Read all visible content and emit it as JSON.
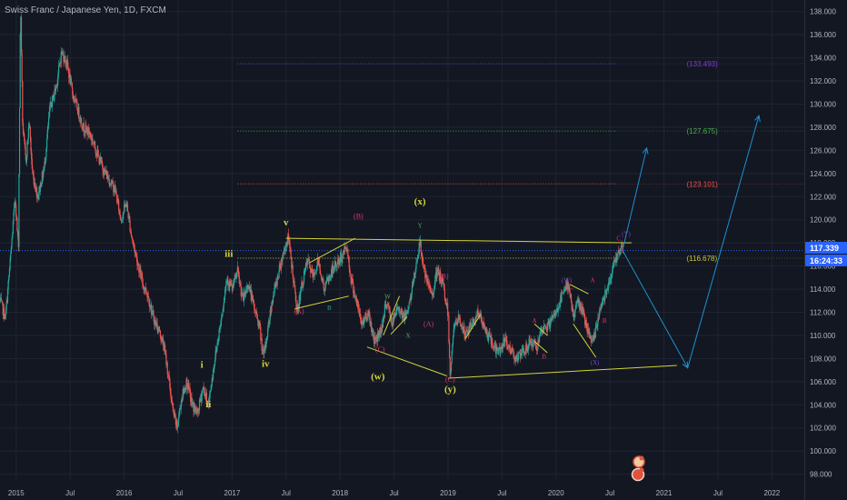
{
  "header": {
    "title": "Swiss Franc / Japanese Yen, 1D, FXCM"
  },
  "price_badge": {
    "price": "117.339",
    "countdown": "16:24:33",
    "color": "#2962ff"
  },
  "colors": {
    "background": "#131722",
    "grid": "#1f2433",
    "axis_text": "#b2b5be",
    "up_candle": "#26a69a",
    "down_candle": "#ef5350",
    "trend_lines": "#d4d43a",
    "projection": "#1e90d0",
    "price_line": "#2962ff"
  },
  "chart_data": {
    "type": "candlestick",
    "title": "Swiss Franc / Japanese Yen, 1D, FXCM",
    "y_axis": {
      "ticks": [
        "138.000",
        "136.000",
        "134.000",
        "132.000",
        "130.000",
        "128.000",
        "126.000",
        "124.000",
        "122.000",
        "120.000",
        "118.000",
        "116.000",
        "114.000",
        "112.000",
        "110.000",
        "108.000",
        "106.000",
        "104.000",
        "102.000",
        "100.000",
        "98.000"
      ],
      "range": [
        97.5,
        139
      ]
    },
    "x_axis": {
      "ticks": [
        {
          "label": "2015",
          "year": 2015.0
        },
        {
          "label": "Jul",
          "year": 2015.5
        },
        {
          "label": "2016",
          "year": 2016.0
        },
        {
          "label": "Jul",
          "year": 2016.5
        },
        {
          "label": "2017",
          "year": 2017.0
        },
        {
          "label": "Jul",
          "year": 2017.5
        },
        {
          "label": "2018",
          "year": 2018.0
        },
        {
          "label": "Jul",
          "year": 2018.5
        },
        {
          "label": "2019",
          "year": 2019.0
        },
        {
          "label": "Jul",
          "year": 2019.5
        },
        {
          "label": "2020",
          "year": 2020.0
        },
        {
          "label": "Jul",
          "year": 2020.5
        },
        {
          "label": "2021",
          "year": 2021.0
        },
        {
          "label": "Jul",
          "year": 2021.5
        },
        {
          "label": "2022",
          "year": 2022.0
        }
      ],
      "range": [
        2014.85,
        2022.3
      ]
    },
    "price_path": [
      [
        2014.85,
        113.0
      ],
      [
        2014.9,
        111.5
      ],
      [
        2014.95,
        117.0
      ],
      [
        2014.99,
        122.0
      ],
      [
        2015.02,
        117.5
      ],
      [
        2015.04,
        139.0
      ],
      [
        2015.06,
        128.0
      ],
      [
        2015.09,
        125.0
      ],
      [
        2015.12,
        128.5
      ],
      [
        2015.15,
        124.0
      ],
      [
        2015.2,
        122.0
      ],
      [
        2015.26,
        124.5
      ],
      [
        2015.31,
        129.5
      ],
      [
        2015.37,
        131.5
      ],
      [
        2015.42,
        134.5
      ],
      [
        2015.47,
        133.5
      ],
      [
        2015.52,
        131.0
      ],
      [
        2015.57,
        129.5
      ],
      [
        2015.62,
        128.0
      ],
      [
        2015.68,
        127.5
      ],
      [
        2015.74,
        126.0
      ],
      [
        2015.8,
        124.5
      ],
      [
        2015.86,
        123.5
      ],
      [
        2015.92,
        122.5
      ],
      [
        2015.97,
        120.0
      ],
      [
        2016.02,
        121.5
      ],
      [
        2016.07,
        118.5
      ],
      [
        2016.12,
        116.5
      ],
      [
        2016.17,
        114.5
      ],
      [
        2016.22,
        113.5
      ],
      [
        2016.27,
        111.5
      ],
      [
        2016.32,
        110.5
      ],
      [
        2016.37,
        109.0
      ],
      [
        2016.41,
        106.5
      ],
      [
        2016.45,
        103.5
      ],
      [
        2016.49,
        102.0
      ],
      [
        2016.53,
        104.5
      ],
      [
        2016.58,
        106.0
      ],
      [
        2016.63,
        104.0
      ],
      [
        2016.68,
        103.2
      ],
      [
        2016.73,
        105.5
      ],
      [
        2016.78,
        104.0
      ],
      [
        2016.84,
        108.0
      ],
      [
        2016.9,
        111.5
      ],
      [
        2016.95,
        115.0
      ],
      [
        2017.0,
        114.0
      ],
      [
        2017.05,
        115.5
      ],
      [
        2017.1,
        113.0
      ],
      [
        2017.15,
        114.5
      ],
      [
        2017.2,
        112.5
      ],
      [
        2017.25,
        111.0
      ],
      [
        2017.29,
        108.0
      ],
      [
        2017.33,
        110.5
      ],
      [
        2017.37,
        113.0
      ],
      [
        2017.42,
        115.0
      ],
      [
        2017.47,
        117.0
      ],
      [
        2017.52,
        118.5
      ],
      [
        2017.56,
        115.5
      ],
      [
        2017.6,
        112.0
      ],
      [
        2017.65,
        114.5
      ],
      [
        2017.7,
        116.5
      ],
      [
        2017.75,
        115.0
      ],
      [
        2017.8,
        116.5
      ],
      [
        2017.85,
        114.0
      ],
      [
        2017.9,
        115.0
      ],
      [
        2017.95,
        116.0
      ],
      [
        2018.0,
        116.5
      ],
      [
        2018.06,
        117.8
      ],
      [
        2018.1,
        115.0
      ],
      [
        2018.15,
        113.0
      ],
      [
        2018.2,
        111.0
      ],
      [
        2018.26,
        112.0
      ],
      [
        2018.32,
        109.5
      ],
      [
        2018.38,
        110.5
      ],
      [
        2018.43,
        113.0
      ],
      [
        2018.48,
        111.0
      ],
      [
        2018.54,
        112.5
      ],
      [
        2018.6,
        111.5
      ],
      [
        2018.66,
        113.5
      ],
      [
        2018.7,
        116.0
      ],
      [
        2018.74,
        118.0
      ],
      [
        2018.79,
        115.0
      ],
      [
        2018.85,
        113.5
      ],
      [
        2018.9,
        115.5
      ],
      [
        2018.95,
        114.5
      ],
      [
        2019.0,
        112.0
      ],
      [
        2019.02,
        106.5
      ],
      [
        2019.05,
        110.5
      ],
      [
        2019.1,
        111.5
      ],
      [
        2019.16,
        110.0
      ],
      [
        2019.22,
        111.0
      ],
      [
        2019.28,
        112.0
      ],
      [
        2019.34,
        110.5
      ],
      [
        2019.4,
        109.5
      ],
      [
        2019.46,
        108.5
      ],
      [
        2019.52,
        109.5
      ],
      [
        2019.58,
        108.8
      ],
      [
        2019.64,
        108.0
      ],
      [
        2019.7,
        108.5
      ],
      [
        2019.76,
        109.5
      ],
      [
        2019.82,
        109.0
      ],
      [
        2019.88,
        110.5
      ],
      [
        2019.94,
        111.0
      ],
      [
        2020.0,
        112.0
      ],
      [
        2020.06,
        113.5
      ],
      [
        2020.12,
        114.5
      ],
      [
        2020.16,
        111.5
      ],
      [
        2020.2,
        113.0
      ],
      [
        2020.25,
        112.0
      ],
      [
        2020.3,
        110.0
      ],
      [
        2020.35,
        109.5
      ],
      [
        2020.4,
        112.0
      ],
      [
        2020.45,
        113.5
      ],
      [
        2020.5,
        115.0
      ],
      [
        2020.55,
        116.5
      ],
      [
        2020.59,
        117.5
      ],
      [
        2020.62,
        117.3
      ]
    ],
    "horizontal_levels": [
      {
        "value": 133.493,
        "label": "(133.493)",
        "color": "#7e3fd1"
      },
      {
        "value": 127.675,
        "label": "(127.675)",
        "color": "#4caf50"
      },
      {
        "value": 123.101,
        "label": "(123.101)",
        "color": "#ef5350"
      },
      {
        "value": 116.678,
        "label": "(116.678)",
        "color": "#c8c838"
      }
    ],
    "trend_lines": [
      {
        "x1": 2017.5,
        "y1": 118.4,
        "x2": 2020.7,
        "y2": 118.0
      },
      {
        "x1": 2019.0,
        "y1": 106.3,
        "x2": 2021.12,
        "y2": 107.4
      },
      {
        "x1": 2018.25,
        "y1": 109.0,
        "x2": 2018.99,
        "y2": 106.5
      },
      {
        "x1": 2017.72,
        "y1": 116.3,
        "x2": 2018.14,
        "y2": 118.4
      },
      {
        "x1": 2017.58,
        "y1": 112.3,
        "x2": 2018.08,
        "y2": 113.4
      },
      {
        "x1": 2018.4,
        "y1": 110.0,
        "x2": 2018.55,
        "y2": 113.4
      },
      {
        "x1": 2018.47,
        "y1": 110.1,
        "x2": 2018.62,
        "y2": 111.6
      },
      {
        "x1": 2019.16,
        "y1": 109.7,
        "x2": 2019.3,
        "y2": 111.8
      },
      {
        "x1": 2019.8,
        "y1": 109.5,
        "x2": 2019.92,
        "y2": 108.5
      },
      {
        "x1": 2019.8,
        "y1": 111.0,
        "x2": 2019.92,
        "y2": 110.0
      },
      {
        "x1": 2020.13,
        "y1": 114.4,
        "x2": 2020.3,
        "y2": 113.6
      },
      {
        "x1": 2020.16,
        "y1": 111.0,
        "x2": 2020.37,
        "y2": 108.1
      }
    ],
    "projections": [
      {
        "points": [
          [
            2020.62,
            117.5
          ],
          [
            2020.84,
            126.2
          ]
        ]
      },
      {
        "points": [
          [
            2020.62,
            117.3
          ],
          [
            2021.22,
            107.2
          ],
          [
            2021.88,
            129.0
          ]
        ]
      }
    ],
    "wave_labels": [
      {
        "text": "i",
        "x": 2016.72,
        "y": 107.2,
        "color": "#d4d43a",
        "size": 11,
        "bold": true
      },
      {
        "text": "ii",
        "x": 2016.78,
        "y": 103.8,
        "color": "#d4d43a",
        "size": 11,
        "bold": true
      },
      {
        "text": "iii",
        "x": 2016.97,
        "y": 116.8,
        "color": "#d4d43a",
        "size": 11,
        "bold": true
      },
      {
        "text": "iv",
        "x": 2017.31,
        "y": 107.3,
        "color": "#d4d43a",
        "size": 11,
        "bold": true
      },
      {
        "text": "v",
        "x": 2017.5,
        "y": 119.5,
        "color": "#d4d43a",
        "size": 11,
        "bold": true
      },
      {
        "text": "(x)",
        "x": 2018.74,
        "y": 121.3,
        "color": "#d4d43a",
        "size": 11,
        "bold": true
      },
      {
        "text": "(w)",
        "x": 2018.35,
        "y": 106.2,
        "color": "#d4d43a",
        "size": 11,
        "bold": true
      },
      {
        "text": "(y)",
        "x": 2019.02,
        "y": 105.1,
        "color": "#d4d43a",
        "size": 11,
        "bold": true
      },
      {
        "text": "(B)",
        "x": 2018.17,
        "y": 120.1,
        "color": "#e0336e",
        "size": 8,
        "bold": false
      },
      {
        "text": "(A)",
        "x": 2017.62,
        "y": 111.9,
        "color": "#e0336e",
        "size": 8,
        "bold": false
      },
      {
        "text": "(C)",
        "x": 2018.37,
        "y": 108.6,
        "color": "#e0336e",
        "size": 8,
        "bold": false
      },
      {
        "text": "(B)",
        "x": 2018.96,
        "y": 114.9,
        "color": "#e0336e",
        "size": 8,
        "bold": false
      },
      {
        "text": "(A)",
        "x": 2018.82,
        "y": 110.8,
        "color": "#e0336e",
        "size": 8,
        "bold": false
      },
      {
        "text": "(C)",
        "x": 2019.02,
        "y": 106.0,
        "color": "#e0336e",
        "size": 8,
        "bold": false
      },
      {
        "text": "B",
        "x": 2017.9,
        "y": 112.2,
        "color": "#26a69a",
        "size": 7,
        "bold": false
      },
      {
        "text": "W",
        "x": 2018.44,
        "y": 113.2,
        "color": "#4caf50",
        "size": 7,
        "bold": false
      },
      {
        "text": "X",
        "x": 2018.63,
        "y": 109.8,
        "color": "#4caf50",
        "size": 7,
        "bold": false
      },
      {
        "text": "Y",
        "x": 2018.74,
        "y": 119.3,
        "color": "#4caf50",
        "size": 7,
        "bold": false
      },
      {
        "text": "A",
        "x": 2019.8,
        "y": 111.1,
        "color": "#e0336e",
        "size": 7,
        "bold": false
      },
      {
        "text": "B",
        "x": 2019.89,
        "y": 108.0,
        "color": "#e0336e",
        "size": 7,
        "bold": false
      },
      {
        "text": "(W)",
        "x": 2020.1,
        "y": 114.6,
        "color": "#7e3fd1",
        "size": 7,
        "bold": false
      },
      {
        "text": "C",
        "x": 2020.14,
        "y": 114.0,
        "color": "#e0336e",
        "size": 7,
        "bold": false
      },
      {
        "text": "A",
        "x": 2020.34,
        "y": 114.6,
        "color": "#e0336e",
        "size": 7,
        "bold": false
      },
      {
        "text": "B",
        "x": 2020.45,
        "y": 111.1,
        "color": "#e0336e",
        "size": 7,
        "bold": false
      },
      {
        "text": "(X)",
        "x": 2020.36,
        "y": 107.5,
        "color": "#7e3fd1",
        "size": 7,
        "bold": false
      },
      {
        "text": "C",
        "x": 2020.58,
        "y": 118.2,
        "color": "#e0336e",
        "size": 7,
        "bold": false
      },
      {
        "text": "(Y)",
        "x": 2020.65,
        "y": 118.6,
        "color": "#7e3fd1",
        "size": 7,
        "bold": false
      }
    ],
    "grid": true
  }
}
